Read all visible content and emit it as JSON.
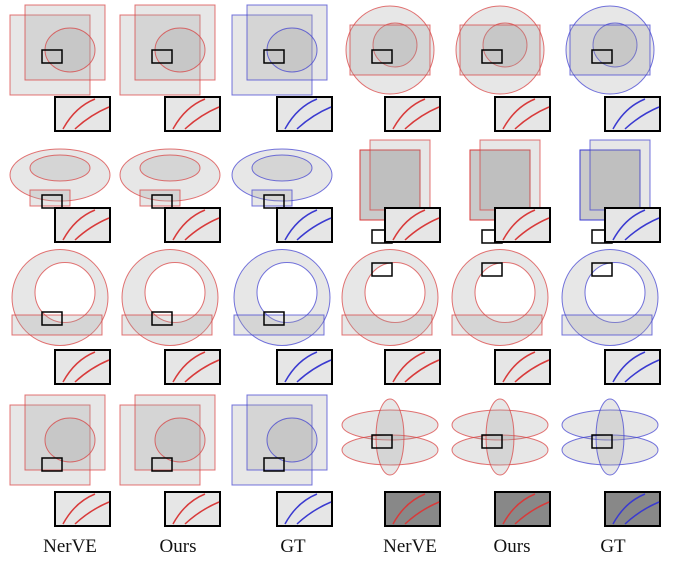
{
  "columns": [
    "NerVE",
    "Ours",
    "GT",
    "NerVE",
    "Ours",
    "GT"
  ]
}
